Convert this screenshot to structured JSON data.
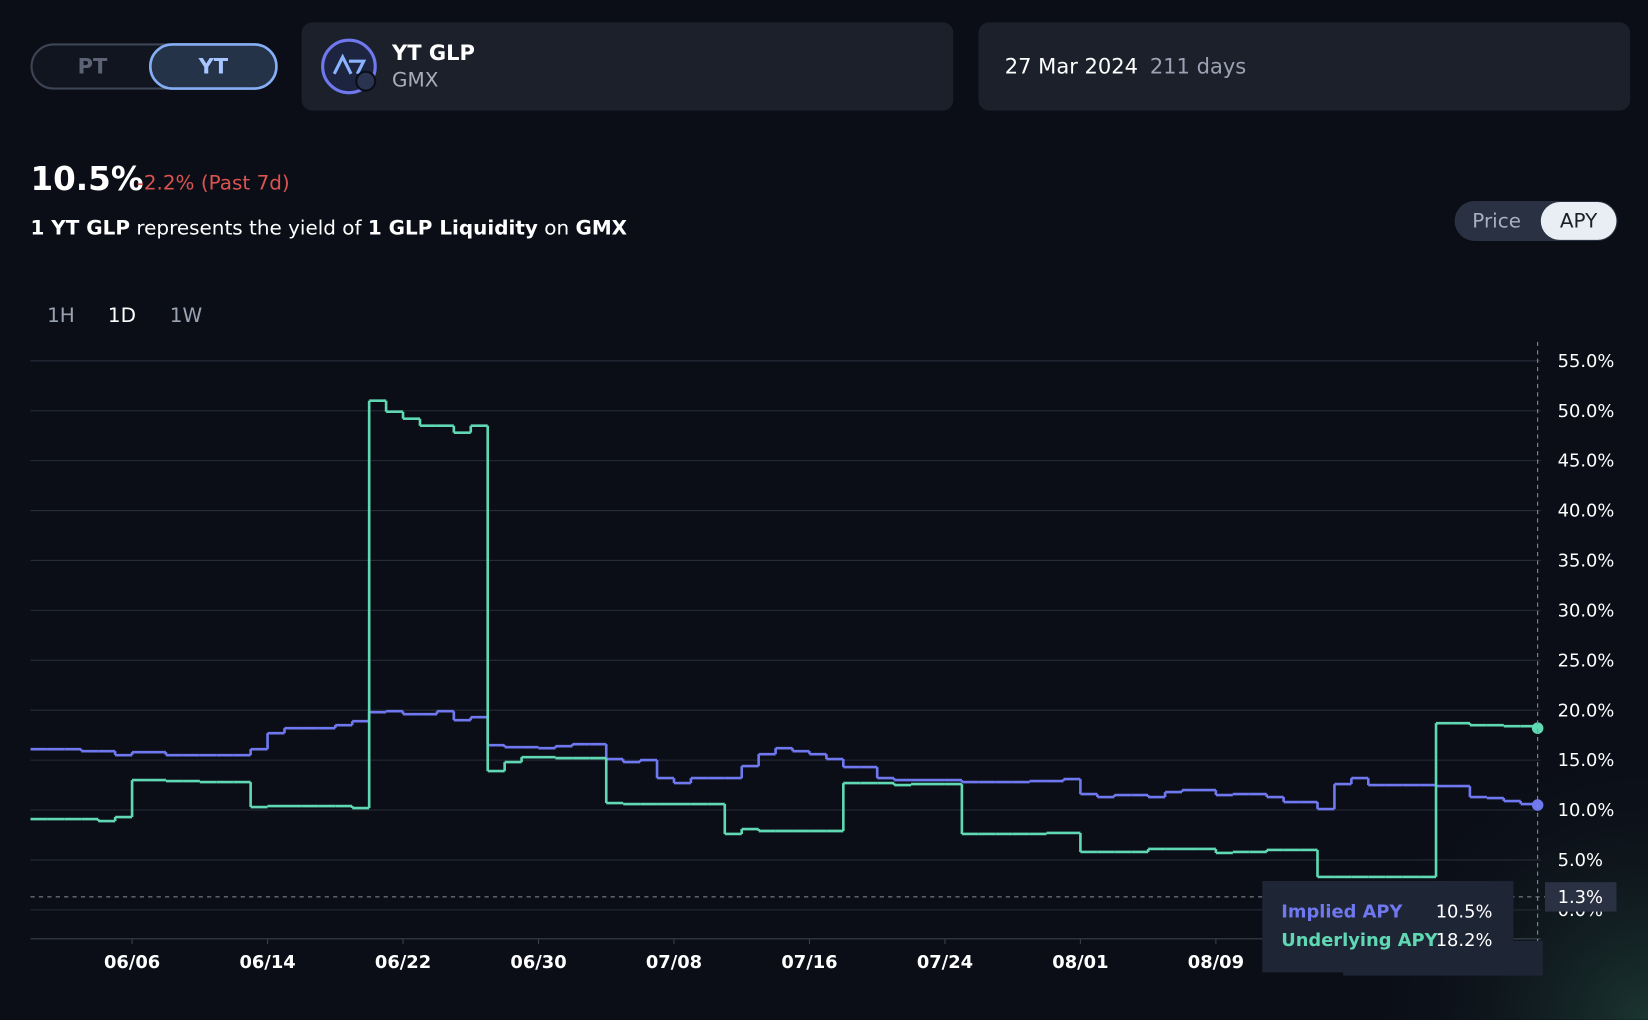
{
  "toggle": {
    "options": [
      "PT",
      "YT"
    ]
  },
  "market": {
    "name": "YT GLP",
    "protocol": "GMX"
  },
  "maturity": {
    "date": "27 Mar 2024",
    "days_left": "211 days"
  },
  "summary": {
    "apy": "10.5%",
    "change": "-2.2% (Past 7d)",
    "description": [
      "1 YT GLP",
      " represents the yield of ",
      "1 GLP Liquidity",
      " on ",
      "GMX"
    ]
  },
  "view_toggle": [
    "Price",
    "APY"
  ],
  "timeframes": [
    "1H",
    "1D",
    "1W"
  ],
  "chart_data": {
    "type": "line",
    "step": true,
    "grid": true,
    "categories": [
      null,
      null,
      null,
      null,
      null,
      null,
      "06/06",
      null,
      null,
      null,
      null,
      null,
      null,
      null,
      "06/14",
      null,
      null,
      null,
      null,
      null,
      null,
      null,
      "06/22",
      null,
      null,
      null,
      null,
      null,
      null,
      null,
      "06/30",
      null,
      null,
      null,
      null,
      null,
      null,
      null,
      "07/08",
      null,
      null,
      null,
      null,
      null,
      null,
      null,
      "07/16",
      null,
      null,
      null,
      null,
      null,
      null,
      null,
      "07/24",
      null,
      null,
      null,
      null,
      null,
      null,
      null,
      "08/01",
      null,
      null,
      null,
      null,
      null,
      null,
      null,
      "08/09",
      null,
      null,
      null,
      null,
      null,
      null,
      null,
      null,
      null,
      null,
      null,
      null,
      null,
      null,
      null,
      null,
      null,
      null,
      null
    ],
    "series": [
      {
        "name": "Implied APY",
        "color": "#6f78ee",
        "values": [
          16.1,
          16.1,
          16.1,
          15.9,
          15.9,
          15.5,
          15.8,
          15.8,
          15.5,
          15.5,
          15.5,
          15.5,
          15.5,
          16.1,
          17.7,
          18.2,
          18.2,
          18.2,
          18.5,
          18.9,
          19.8,
          19.9,
          19.6,
          19.6,
          19.9,
          19.0,
          19.3,
          16.5,
          16.3,
          16.3,
          16.2,
          16.4,
          16.6,
          16.6,
          15.1,
          14.8,
          15.0,
          13.2,
          12.7,
          13.2,
          13.2,
          13.2,
          14.4,
          15.6,
          16.2,
          15.9,
          15.6,
          15.1,
          14.3,
          14.3,
          13.2,
          13.0,
          13.0,
          13.0,
          13.0,
          12.8,
          12.8,
          12.8,
          12.8,
          12.9,
          12.9,
          13.1,
          11.6,
          11.3,
          11.5,
          11.5,
          11.3,
          11.8,
          12.0,
          12.0,
          11.5,
          11.6,
          11.6,
          11.3,
          10.8,
          10.8,
          10.1,
          12.6,
          13.2,
          12.5,
          12.5,
          12.5,
          12.5,
          12.4,
          12.4,
          11.3,
          11.2,
          10.9,
          10.6,
          10.5
        ]
      },
      {
        "name": "Underlying APY",
        "color": "#5fd8b3",
        "values": [
          9.1,
          9.1,
          9.1,
          9.1,
          8.9,
          9.3,
          13.0,
          13.0,
          12.9,
          12.9,
          12.8,
          12.8,
          12.8,
          10.3,
          10.4,
          10.4,
          10.4,
          10.4,
          10.4,
          10.2,
          51.0,
          49.9,
          49.2,
          48.5,
          48.5,
          47.8,
          48.5,
          13.9,
          14.8,
          15.3,
          15.3,
          15.2,
          15.2,
          15.2,
          10.7,
          10.6,
          10.6,
          10.6,
          10.6,
          10.6,
          10.6,
          7.6,
          8.1,
          7.9,
          7.9,
          7.9,
          7.9,
          7.9,
          12.7,
          12.7,
          12.7,
          12.5,
          12.6,
          12.6,
          12.6,
          7.6,
          7.6,
          7.6,
          7.6,
          7.6,
          7.7,
          7.7,
          5.8,
          5.8,
          5.8,
          5.8,
          6.1,
          6.1,
          6.1,
          6.1,
          5.7,
          5.8,
          5.8,
          6.0,
          6.0,
          6.0,
          3.3,
          3.3,
          3.3,
          3.3,
          3.3,
          3.3,
          3.3,
          18.7,
          18.7,
          18.5,
          18.5,
          18.4,
          18.4,
          18.2
        ]
      }
    ],
    "ylim": [
      -2.9,
      56.9
    ],
    "yticks": [
      {
        "value": 0,
        "label": "0.0%"
      },
      {
        "value": 5,
        "label": "5.0%"
      },
      {
        "value": 10,
        "label": "10.0%"
      },
      {
        "value": 15,
        "label": "15.0%"
      },
      {
        "value": 20,
        "label": "20.0%"
      },
      {
        "value": 25,
        "label": "25.0%"
      },
      {
        "value": 30,
        "label": "30.0%"
      },
      {
        "value": 35,
        "label": "35.0%"
      },
      {
        "value": 40,
        "label": "40.0%"
      },
      {
        "value": 45,
        "label": "45.0%"
      },
      {
        "value": 50,
        "label": "50.0%"
      },
      {
        "value": 55,
        "label": "55.0%"
      }
    ],
    "cursor": {
      "y": 1.3,
      "label": "1.3%"
    },
    "tooltip_values": [
      "10.5%",
      "18.2%"
    ]
  }
}
